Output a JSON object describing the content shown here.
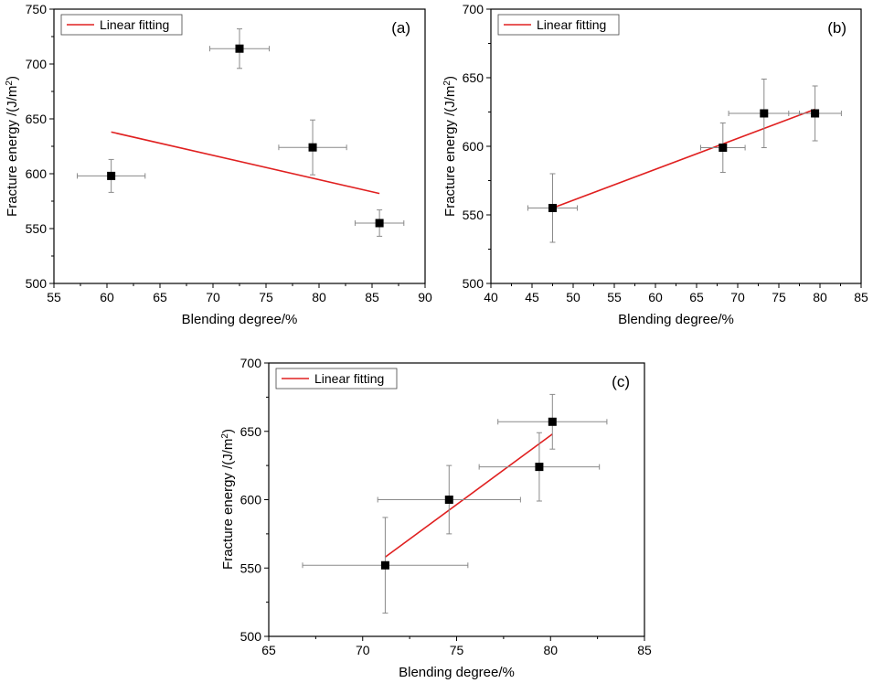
{
  "chart_data": [
    {
      "type": "scatter",
      "panel_label": "(a)",
      "title": "",
      "xlabel": "Blending degree/%",
      "ylabel_main": "Fracture energy /(J/m",
      "ylabel_sup": "2",
      "ylabel_end": ")",
      "xlim": [
        55,
        90
      ],
      "ylim": [
        500,
        750
      ],
      "xticks": [
        55,
        60,
        65,
        70,
        75,
        80,
        85,
        90
      ],
      "yticks": [
        500,
        550,
        600,
        650,
        700,
        750
      ],
      "legend": [
        "Linear fitting"
      ],
      "legend_position": "top-left",
      "points": [
        {
          "x": 60.4,
          "y": 598,
          "xerr": 3.2,
          "yerr": 15
        },
        {
          "x": 72.5,
          "y": 714,
          "xerr": 2.8,
          "yerr": 18
        },
        {
          "x": 79.4,
          "y": 624,
          "xerr": 3.2,
          "yerr": 25
        },
        {
          "x": 85.7,
          "y": 555,
          "xerr": 2.3,
          "yerr": 12
        }
      ],
      "fit": {
        "name": "Linear fitting",
        "x": [
          60.4,
          85.7
        ],
        "y": [
          638,
          582
        ]
      }
    },
    {
      "type": "scatter",
      "panel_label": "(b)",
      "title": "",
      "xlabel": "Blending degree/%",
      "ylabel_main": "Fracture energy /(J/m",
      "ylabel_sup": "2",
      "ylabel_end": ")",
      "xlim": [
        40,
        85
      ],
      "ylim": [
        500,
        700
      ],
      "xticks": [
        40,
        45,
        50,
        55,
        60,
        65,
        70,
        75,
        80,
        85
      ],
      "yticks": [
        500,
        550,
        600,
        650,
        700
      ],
      "legend": [
        "Linear fitting"
      ],
      "legend_position": "top-left",
      "points": [
        {
          "x": 47.5,
          "y": 555,
          "xerr": 3.0,
          "yerr": 25
        },
        {
          "x": 68.2,
          "y": 599,
          "xerr": 2.7,
          "yerr": 18
        },
        {
          "x": 73.2,
          "y": 624,
          "xerr": 4.3,
          "yerr": 25
        },
        {
          "x": 79.4,
          "y": 624,
          "xerr": 3.2,
          "yerr": 20
        }
      ],
      "fit": {
        "name": "Linear fitting",
        "x": [
          47.5,
          79.4
        ],
        "y": [
          555,
          627
        ]
      }
    },
    {
      "type": "scatter",
      "panel_label": "(c)",
      "title": "",
      "xlabel": "Blending degree/%",
      "ylabel_main": "Fracture energy /(J/m",
      "ylabel_sup": "2",
      "ylabel_end": ")",
      "xlim": [
        65,
        85
      ],
      "ylim": [
        500,
        700
      ],
      "xticks": [
        65,
        70,
        75,
        80,
        85
      ],
      "yticks": [
        500,
        550,
        600,
        650,
        700
      ],
      "legend": [
        "Linear fitting"
      ],
      "legend_position": "top-left",
      "points": [
        {
          "x": 71.2,
          "y": 552,
          "xerr": 4.4,
          "yerr": 35
        },
        {
          "x": 74.6,
          "y": 600,
          "xerr": 3.8,
          "yerr": 25
        },
        {
          "x": 79.4,
          "y": 624,
          "xerr": 3.2,
          "yerr": 25
        },
        {
          "x": 80.1,
          "y": 657,
          "xerr": 2.9,
          "yerr": 20
        }
      ],
      "fit": {
        "name": "Linear fitting",
        "x": [
          71.2,
          80.1
        ],
        "y": [
          558,
          648
        ]
      }
    }
  ]
}
